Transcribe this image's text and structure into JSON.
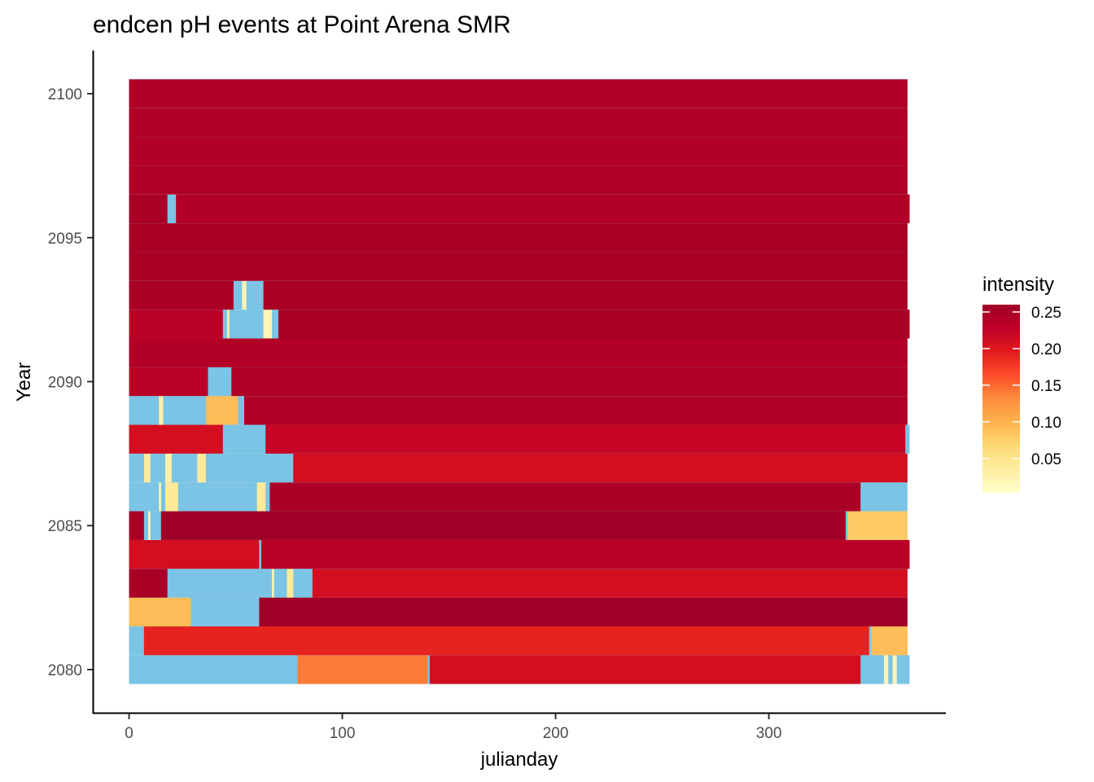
{
  "chart_data": {
    "type": "heatmap",
    "title": "endcen pH events at Point Arena SMR",
    "xlabel": "julianday",
    "ylabel": "Year",
    "xlim": [
      -17,
      383
    ],
    "ylim": [
      2078.5,
      2101.5
    ],
    "x_ticks": [
      "0",
      "100",
      "200",
      "300"
    ],
    "x_tick_values": [
      0,
      100,
      200,
      300
    ],
    "y_ticks": [
      "2080",
      "2085",
      "2090",
      "2095",
      "2100"
    ],
    "y_tick_values": [
      2080,
      2085,
      2090,
      2095,
      2100
    ],
    "grid": false,
    "background_color": "#7bc4e5",
    "background_meaning": "days without event",
    "legend": {
      "title": "intensity",
      "position": "right",
      "labels": [
        "0.25",
        "0.20",
        "0.15",
        "0.10",
        "0.05"
      ],
      "label_values": [
        0.25,
        0.2,
        0.15,
        0.1,
        0.05
      ],
      "range": [
        0.003,
        0.26
      ],
      "colors": [
        "#ffffcc",
        "#ffeda0",
        "#fed976",
        "#feb24c",
        "#fd8d3c",
        "#fc4e2a",
        "#e31a1c",
        "#bd0026",
        "#a10026"
      ]
    },
    "rows": [
      {
        "year": 2080,
        "end": 366,
        "segments": [
          [
            0,
            79,
            null
          ],
          [
            79,
            140,
            0.14
          ],
          [
            141,
            343,
            0.21
          ],
          [
            343,
            354,
            null
          ],
          [
            354,
            356,
            0.02
          ],
          [
            356,
            358,
            null
          ],
          [
            358,
            360,
            0.02
          ],
          [
            360,
            366,
            null
          ]
        ]
      },
      {
        "year": 2081,
        "end": 365,
        "segments": [
          [
            0,
            7,
            null
          ],
          [
            7,
            347,
            0.19
          ],
          [
            347,
            348,
            null
          ],
          [
            348,
            365,
            0.09
          ]
        ]
      },
      {
        "year": 2082,
        "end": 365,
        "segments": [
          [
            0,
            29,
            0.09
          ],
          [
            29,
            61,
            null
          ],
          [
            61,
            365,
            0.26
          ]
        ]
      },
      {
        "year": 2083,
        "end": 365,
        "segments": [
          [
            0,
            18,
            0.25
          ],
          [
            18,
            67,
            null
          ],
          [
            67,
            68,
            0.02
          ],
          [
            68,
            74,
            null
          ],
          [
            74,
            77,
            0.04
          ],
          [
            77,
            86,
            null
          ],
          [
            86,
            365,
            0.21
          ]
        ]
      },
      {
        "year": 2084,
        "end": 366,
        "segments": [
          [
            0,
            61,
            0.21
          ],
          [
            61,
            62,
            null
          ],
          [
            62,
            366,
            0.23
          ]
        ]
      },
      {
        "year": 2085,
        "end": 365,
        "segments": [
          [
            0,
            7,
            0.25
          ],
          [
            7,
            9,
            null
          ],
          [
            9,
            10,
            0.02
          ],
          [
            10,
            15,
            null
          ],
          [
            15,
            336,
            0.26
          ],
          [
            336,
            337,
            null
          ],
          [
            337,
            365,
            0.08
          ]
        ]
      },
      {
        "year": 2086,
        "end": 365,
        "segments": [
          [
            0,
            14,
            null
          ],
          [
            14,
            15,
            0.02
          ],
          [
            15,
            17,
            null
          ],
          [
            17,
            23,
            0.04
          ],
          [
            23,
            60,
            null
          ],
          [
            60,
            64,
            0.04
          ],
          [
            64,
            66,
            null
          ],
          [
            66,
            343,
            0.25
          ],
          [
            343,
            365,
            null
          ]
        ]
      },
      {
        "year": 2087,
        "end": 365,
        "segments": [
          [
            0,
            7,
            null
          ],
          [
            7,
            10,
            0.04
          ],
          [
            10,
            17,
            null
          ],
          [
            17,
            20,
            0.03
          ],
          [
            20,
            32,
            null
          ],
          [
            32,
            36,
            0.04
          ],
          [
            36,
            77,
            null
          ],
          [
            77,
            365,
            0.21
          ]
        ]
      },
      {
        "year": 2088,
        "end": 366,
        "segments": [
          [
            0,
            44,
            0.21
          ],
          [
            44,
            64,
            null
          ],
          [
            64,
            364,
            0.22
          ],
          [
            364,
            366,
            null
          ]
        ]
      },
      {
        "year": 2089,
        "end": 365,
        "segments": [
          [
            0,
            14,
            null
          ],
          [
            14,
            16,
            0.03
          ],
          [
            16,
            36,
            null
          ],
          [
            36,
            51,
            0.09
          ],
          [
            51,
            54,
            null
          ],
          [
            54,
            365,
            0.24
          ]
        ]
      },
      {
        "year": 2090,
        "end": 365,
        "segments": [
          [
            0,
            37,
            0.23
          ],
          [
            37,
            48,
            null
          ],
          [
            48,
            365,
            0.24
          ]
        ]
      },
      {
        "year": 2091,
        "end": 365,
        "segments": [
          [
            0,
            365,
            0.24
          ]
        ]
      },
      {
        "year": 2092,
        "end": 366,
        "segments": [
          [
            0,
            44,
            0.23
          ],
          [
            44,
            46,
            null
          ],
          [
            46,
            47,
            0.03
          ],
          [
            47,
            63,
            null
          ],
          [
            63,
            67,
            0.02
          ],
          [
            67,
            70,
            null
          ],
          [
            70,
            366,
            0.25
          ]
        ]
      },
      {
        "year": 2093,
        "end": 365,
        "segments": [
          [
            0,
            49,
            0.25
          ],
          [
            49,
            53,
            null
          ],
          [
            53,
            55,
            0.02
          ],
          [
            55,
            63,
            null
          ],
          [
            63,
            365,
            0.25
          ]
        ]
      },
      {
        "year": 2094,
        "end": 365,
        "segments": [
          [
            0,
            365,
            0.25
          ]
        ]
      },
      {
        "year": 2095,
        "end": 365,
        "segments": [
          [
            0,
            365,
            0.25
          ]
        ]
      },
      {
        "year": 2096,
        "end": 366,
        "segments": [
          [
            0,
            18,
            0.25
          ],
          [
            18,
            22,
            null
          ],
          [
            22,
            366,
            0.24
          ]
        ]
      },
      {
        "year": 2097,
        "end": 365,
        "segments": [
          [
            0,
            365,
            0.24
          ]
        ]
      },
      {
        "year": 2098,
        "end": 365,
        "segments": [
          [
            0,
            365,
            0.24
          ]
        ]
      },
      {
        "year": 2099,
        "end": 365,
        "segments": [
          [
            0,
            365,
            0.24
          ]
        ]
      },
      {
        "year": 2100,
        "end": 365,
        "segments": [
          [
            0,
            365,
            0.24
          ]
        ]
      }
    ]
  }
}
